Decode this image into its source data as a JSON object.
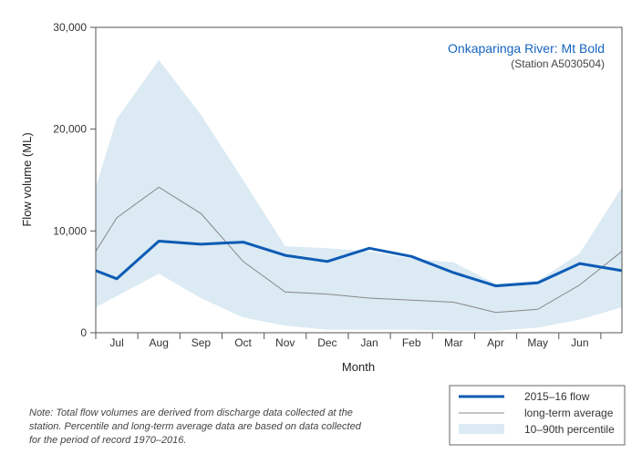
{
  "chart_data": {
    "type": "line",
    "title": "Onkaparinga River: Mt Bold",
    "subtitle": "(Station A5030504)",
    "xlabel": "Month",
    "ylabel": "Flow volume (ML)",
    "ylim": [
      0,
      30000
    ],
    "yticks": [
      0,
      10000,
      20000,
      30000
    ],
    "ytick_labels": [
      "0",
      "10,000",
      "20,000",
      "30,000"
    ],
    "categories": [
      "Jul",
      "Aug",
      "Sep",
      "Oct",
      "Nov",
      "Dec",
      "Jan",
      "Feb",
      "Mar",
      "Apr",
      "May",
      "Jun"
    ],
    "edge_values": {
      "flow": [
        6100,
        6100
      ],
      "average": [
        8000,
        8000
      ],
      "p10": [
        2500,
        2500
      ],
      "p90": [
        14300,
        14300
      ]
    },
    "series": [
      {
        "name": "2015–16 flow",
        "values": [
          5300,
          9000,
          8700,
          8900,
          7600,
          7000,
          8300,
          7500,
          5900,
          4600,
          4900,
          6800
        ]
      },
      {
        "name": "long-term average",
        "values": [
          11300,
          14300,
          11700,
          7000,
          4000,
          3800,
          3400,
          3200,
          3000,
          2000,
          2300,
          4700
        ]
      }
    ],
    "percentile_band": {
      "name": "10–90th percentile",
      "p10": [
        3600,
        5800,
        3400,
        1500,
        700,
        300,
        300,
        300,
        200,
        200,
        500,
        1300
      ],
      "p90": [
        21000,
        26800,
        21400,
        15000,
        8500,
        8300,
        8000,
        7300,
        6900,
        4800,
        5100,
        7800
      ]
    },
    "legend": [
      "2015–16 flow",
      "long-term average",
      "10–90th percentile"
    ],
    "legend_position": "bottom-right",
    "grid": false
  },
  "note": "Note: Total flow volumes are derived from discharge data collected at the station. Percentile and long-term average data are based on data collected for the period of record 1970–2016.",
  "colors": {
    "flow": "#0d5bb5",
    "average": "#888888",
    "band": "#dbeaf3",
    "axis": "#555555",
    "title": "#1565c0"
  }
}
